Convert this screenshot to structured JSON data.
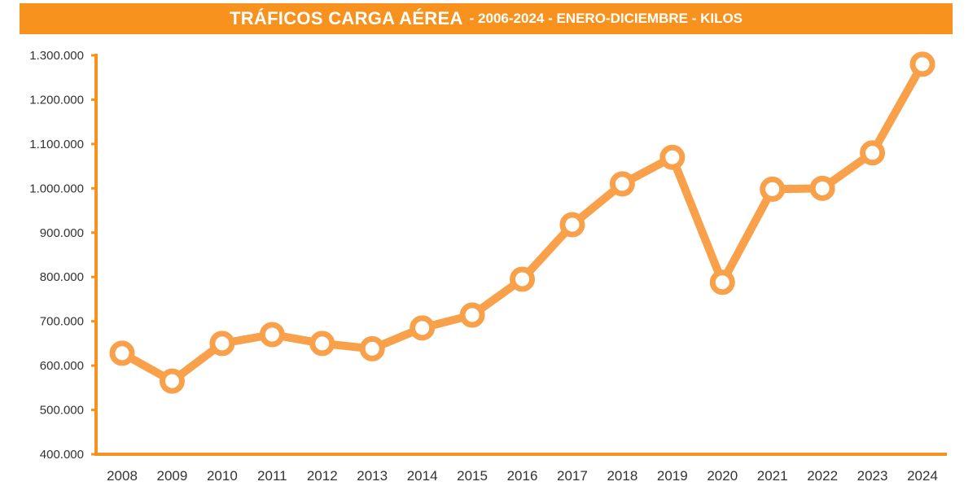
{
  "title": {
    "main": "TRÁFICOS CARGA AÉREA",
    "sub": "- 2006-2024 - ENERO-DICIEMBRE - KILOS"
  },
  "colors": {
    "accent": "#F7921E",
    "line": "#F9A04B",
    "axis": "#F7921E",
    "text": "#333333",
    "marker_fill": "#ffffff"
  },
  "chart_data": {
    "type": "line",
    "title": "TRÁFICOS CARGA AÉREA - 2006-2024 - ENERO-DICIEMBRE - KILOS",
    "xlabel": "",
    "ylabel": "",
    "categories": [
      "2008",
      "2009",
      "2010",
      "2011",
      "2012",
      "2013",
      "2014",
      "2015",
      "2016",
      "2017",
      "2018",
      "2019",
      "2020",
      "2021",
      "2022",
      "2023",
      "2024"
    ],
    "series": [
      {
        "values": [
          628000,
          565000,
          650000,
          670000,
          650000,
          638000,
          685000,
          714000,
          795000,
          918000,
          1010000,
          1070000,
          788000,
          998000,
          1000000,
          1080000,
          1280000
        ]
      }
    ],
    "ylim": [
      400000,
      1300000
    ],
    "yticks": [
      400000,
      500000,
      600000,
      700000,
      800000,
      900000,
      1000000,
      1100000,
      1200000,
      1300000
    ],
    "ytick_labels": [
      "400.000",
      "500.000",
      "600.000",
      "700.000",
      "800.000",
      "900.000",
      "1.000.000",
      "1.100.000",
      "1.200.000",
      "1.300.000"
    ],
    "grid": false,
    "legend": "none"
  }
}
